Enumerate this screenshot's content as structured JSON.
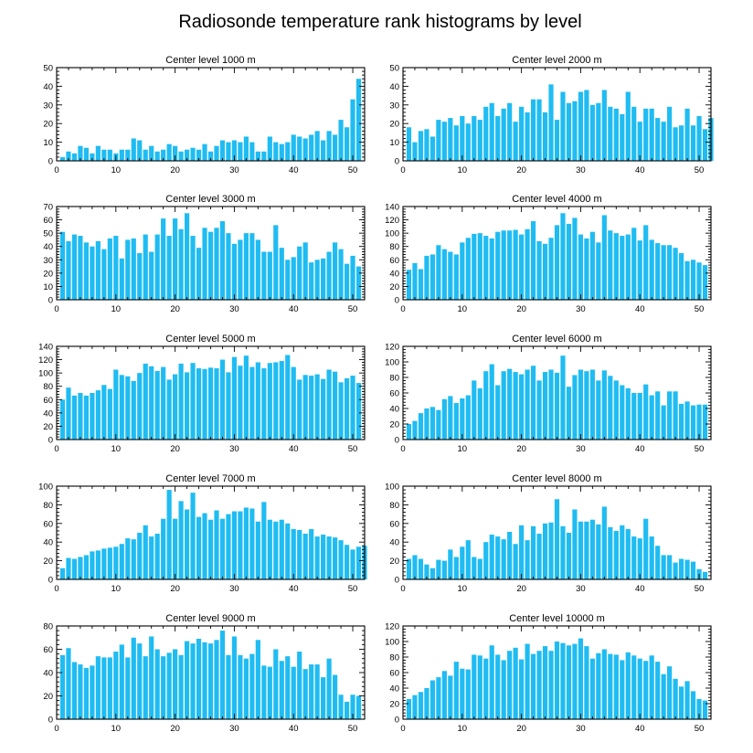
{
  "title": "Radiosonde temperature rank histograms by level",
  "bar_color": "#1fbcf2",
  "chart_data": [
    {
      "type": "bar",
      "title": "Center level 1000 m",
      "xlim": [
        0,
        52
      ],
      "xticks": [
        0,
        10,
        20,
        30,
        40,
        50
      ],
      "ylim": [
        0,
        50
      ],
      "yticks": [
        0,
        10,
        20,
        30,
        40,
        50
      ],
      "values": [
        2,
        5,
        4,
        8,
        7,
        4,
        8,
        6,
        6,
        4,
        6,
        6,
        12,
        11,
        6,
        8,
        5,
        6,
        9,
        8,
        5,
        6,
        7,
        6,
        9,
        5,
        8,
        11,
        10,
        11,
        10,
        13,
        10,
        5,
        5,
        13,
        10,
        9,
        10,
        14,
        13,
        12,
        14,
        16,
        11,
        16,
        14,
        22,
        18,
        33,
        44
      ]
    },
    {
      "type": "bar",
      "title": "Center level 2000 m",
      "xlim": [
        0,
        52
      ],
      "xticks": [
        0,
        10,
        20,
        30,
        40,
        50
      ],
      "ylim": [
        0,
        50
      ],
      "yticks": [
        0,
        10,
        20,
        30,
        40,
        50
      ],
      "values": [
        18,
        10,
        16,
        17,
        13,
        22,
        21,
        23,
        19,
        24,
        20,
        24,
        22,
        29,
        31,
        24,
        28,
        31,
        21,
        29,
        26,
        33,
        33,
        26,
        41,
        22,
        37,
        31,
        32,
        37,
        38,
        30,
        31,
        38,
        29,
        28,
        25,
        37,
        29,
        21,
        28,
        28,
        23,
        21,
        29,
        18,
        19,
        28,
        19,
        24,
        17,
        23
      ]
    },
    {
      "type": "bar",
      "title": "Center level 3000 m",
      "xlim": [
        0,
        52
      ],
      "xticks": [
        0,
        10,
        20,
        30,
        40,
        50
      ],
      "ylim": [
        0,
        70
      ],
      "yticks": [
        0,
        10,
        20,
        30,
        40,
        50,
        60,
        70
      ],
      "values": [
        51,
        44,
        49,
        48,
        43,
        40,
        44,
        38,
        46,
        48,
        31,
        45,
        46,
        35,
        49,
        36,
        49,
        61,
        48,
        61,
        53,
        65,
        48,
        39,
        54,
        51,
        54,
        59,
        50,
        42,
        45,
        50,
        50,
        45,
        36,
        36,
        56,
        39,
        30,
        32,
        40,
        43,
        28,
        30,
        31,
        36,
        43,
        38,
        27,
        33,
        25
      ]
    },
    {
      "type": "bar",
      "title": "Center level 4000 m",
      "xlim": [
        0,
        52
      ],
      "xticks": [
        0,
        10,
        20,
        30,
        40,
        50
      ],
      "ylim": [
        0,
        140
      ],
      "yticks": [
        0,
        20,
        40,
        60,
        80,
        100,
        120,
        140
      ],
      "values": [
        45,
        55,
        46,
        66,
        68,
        82,
        76,
        72,
        68,
        86,
        93,
        99,
        100,
        96,
        92,
        102,
        104,
        104,
        105,
        98,
        106,
        118,
        88,
        84,
        93,
        112,
        130,
        114,
        123,
        98,
        92,
        102,
        86,
        127,
        104,
        100,
        96,
        98,
        108,
        89,
        112,
        90,
        85,
        82,
        82,
        78,
        70,
        58,
        60,
        56,
        52
      ]
    },
    {
      "type": "bar",
      "title": "Center level 5000 m",
      "xlim": [
        0,
        52
      ],
      "xticks": [
        0,
        10,
        20,
        30,
        40,
        50
      ],
      "ylim": [
        0,
        140
      ],
      "yticks": [
        0,
        20,
        40,
        60,
        80,
        100,
        120,
        140
      ],
      "values": [
        60,
        78,
        66,
        70,
        66,
        70,
        74,
        82,
        76,
        105,
        97,
        95,
        88,
        100,
        114,
        110,
        103,
        109,
        90,
        98,
        114,
        101,
        115,
        107,
        106,
        108,
        107,
        120,
        101,
        124,
        111,
        126,
        109,
        116,
        107,
        115,
        116,
        118,
        127,
        109,
        90,
        97,
        96,
        98,
        91,
        105,
        102,
        86,
        92,
        96,
        85
      ]
    },
    {
      "type": "bar",
      "title": "Center level 6000 m",
      "xlim": [
        0,
        52
      ],
      "xticks": [
        0,
        10,
        20,
        30,
        40,
        50
      ],
      "ylim": [
        0,
        120
      ],
      "yticks": [
        0,
        20,
        40,
        60,
        80,
        100,
        120
      ],
      "values": [
        20,
        24,
        34,
        40,
        42,
        38,
        52,
        56,
        47,
        53,
        57,
        76,
        66,
        88,
        97,
        70,
        88,
        91,
        87,
        84,
        90,
        95,
        76,
        87,
        90,
        86,
        108,
        68,
        83,
        90,
        88,
        90,
        76,
        89,
        82,
        76,
        70,
        66,
        60,
        60,
        71,
        57,
        62,
        44,
        62,
        62,
        46,
        49,
        44,
        45,
        45
      ]
    },
    {
      "type": "bar",
      "title": "Center level 7000 m",
      "xlim": [
        0,
        52
      ],
      "xticks": [
        0,
        10,
        20,
        30,
        40,
        50
      ],
      "ylim": [
        0,
        100
      ],
      "yticks": [
        0,
        20,
        40,
        60,
        80,
        100
      ],
      "values": [
        12,
        23,
        22,
        24,
        26,
        30,
        31,
        33,
        34,
        35,
        38,
        44,
        43,
        50,
        58,
        46,
        49,
        65,
        96,
        65,
        84,
        75,
        93,
        67,
        71,
        64,
        74,
        65,
        70,
        73,
        73,
        77,
        76,
        62,
        83,
        64,
        62,
        64,
        60,
        54,
        53,
        49,
        54,
        46,
        48,
        46,
        45,
        42,
        37,
        32,
        35,
        36
      ]
    },
    {
      "type": "bar",
      "title": "Center level 8000 m",
      "xlim": [
        0,
        52
      ],
      "xticks": [
        0,
        10,
        20,
        30,
        40,
        50
      ],
      "ylim": [
        0,
        100
      ],
      "yticks": [
        0,
        20,
        40,
        60,
        80,
        100
      ],
      "values": [
        22,
        26,
        22,
        16,
        12,
        21,
        20,
        32,
        24,
        35,
        42,
        24,
        22,
        40,
        48,
        46,
        43,
        51,
        38,
        58,
        42,
        57,
        49,
        60,
        61,
        86,
        57,
        50,
        75,
        62,
        62,
        64,
        59,
        78,
        56,
        52,
        58,
        54,
        46,
        44,
        65,
        46,
        36,
        26,
        26,
        18,
        22,
        21,
        19,
        11,
        8
      ]
    },
    {
      "type": "bar",
      "title": "Center level 9000 m",
      "xlim": [
        0,
        52
      ],
      "xticks": [
        0,
        10,
        20,
        30,
        40,
        50
      ],
      "ylim": [
        0,
        80
      ],
      "yticks": [
        0,
        20,
        40,
        60,
        80
      ],
      "values": [
        55,
        61,
        49,
        47,
        44,
        46,
        54,
        53,
        53,
        58,
        64,
        53,
        70,
        65,
        54,
        71,
        60,
        54,
        57,
        60,
        55,
        67,
        65,
        69,
        66,
        65,
        68,
        76,
        55,
        71,
        55,
        52,
        56,
        68,
        46,
        45,
        60,
        50,
        54,
        45,
        58,
        43,
        47,
        47,
        36,
        52,
        38,
        21,
        15,
        21,
        20
      ]
    },
    {
      "type": "bar",
      "title": "Center level 10000 m",
      "xlim": [
        0,
        52
      ],
      "xticks": [
        0,
        10,
        20,
        30,
        40,
        50
      ],
      "ylim": [
        0,
        120
      ],
      "yticks": [
        0,
        20,
        40,
        60,
        80,
        100,
        120
      ],
      "values": [
        26,
        31,
        35,
        40,
        50,
        54,
        62,
        56,
        74,
        65,
        64,
        83,
        82,
        78,
        95,
        83,
        76,
        88,
        92,
        77,
        97,
        84,
        88,
        94,
        88,
        100,
        98,
        95,
        97,
        104,
        94,
        78,
        85,
        90,
        84,
        83,
        76,
        86,
        82,
        78,
        75,
        82,
        74,
        58,
        68,
        52,
        42,
        49,
        36,
        26,
        24
      ]
    }
  ]
}
